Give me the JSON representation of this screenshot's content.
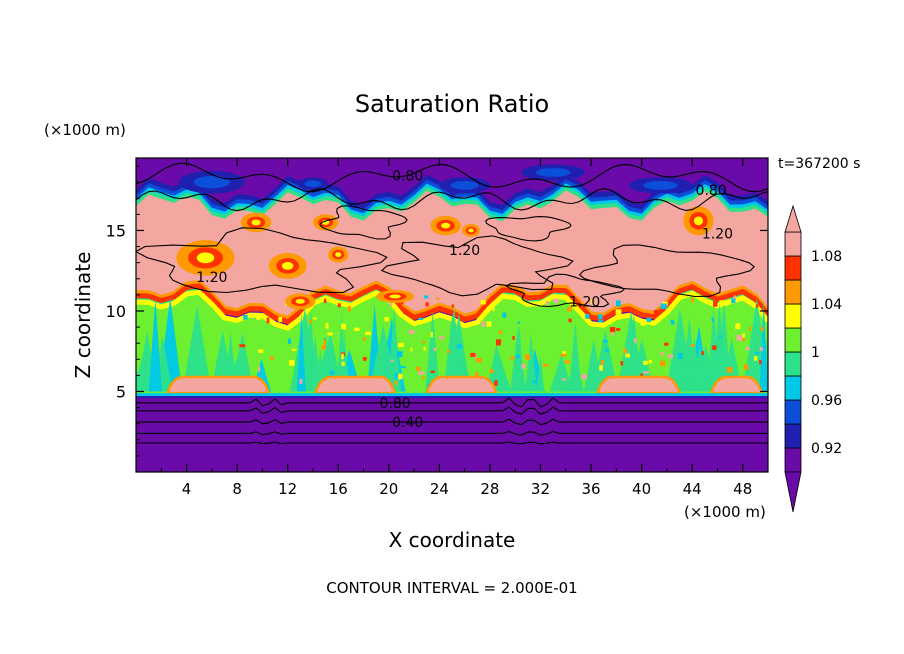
{
  "chart_data": {
    "type": "heatmap",
    "title": "Saturation Ratio",
    "xlabel": "X coordinate",
    "ylabel": "Z coordinate",
    "x_unit": "(×1000 m)",
    "y_unit": "(×1000 m)",
    "time_label": "t=367200 s",
    "footer": "CONTOUR INTERVAL = 2.000E-01",
    "xlim": [
      0,
      50
    ],
    "ylim": [
      0,
      19.5
    ],
    "x_ticks": [
      4,
      8,
      12,
      16,
      20,
      24,
      28,
      32,
      36,
      40,
      44,
      48
    ],
    "y_ticks": [
      5,
      10,
      15
    ],
    "grid": false,
    "colorbar": {
      "placement": "right",
      "tick_labels": [
        "0.92",
        "0.96",
        "1",
        "1.04",
        "1.08"
      ],
      "tick_values": [
        0.92,
        0.96,
        1.0,
        1.04,
        1.08
      ],
      "colors": [
        "#6a0aa8",
        "#1f1fb0",
        "#0b4fd8",
        "#00c8e8",
        "#2de08a",
        "#6df030",
        "#ffff00",
        "#ff9900",
        "#ff3300",
        "#f4a6a0"
      ]
    },
    "contour_labels": [
      {
        "text": "0.80",
        "x": 21.5,
        "z": 18.4
      },
      {
        "text": "0.80",
        "x": 45.5,
        "z": 17.5
      },
      {
        "text": "1.20",
        "x": 26.0,
        "z": 13.8
      },
      {
        "text": "1.20",
        "x": 6.0,
        "z": 12.1
      },
      {
        "text": "1.20",
        "x": 35.5,
        "z": 10.6
      },
      {
        "text": "1.20",
        "x": 46.0,
        "z": 14.8
      },
      {
        "text": "0.80",
        "x": 20.5,
        "z": 4.3
      },
      {
        "text": "0.40",
        "x": 21.5,
        "z": 3.1
      }
    ],
    "regions": [
      {
        "level": "<0.92",
        "color": "#6a0aa8",
        "zmin": 0,
        "zmax": 4.6
      },
      {
        "level": "<0.92",
        "color": "#6a0aa8",
        "zmin": 16.8,
        "zmax": 19.5
      },
      {
        "level": ">1.08",
        "color": "#f4a6a0",
        "zmin": 10.5,
        "zmax": 16.3
      },
      {
        "level": "~1",
        "color": "#6df030",
        "zmin": 4.9,
        "zmax": 10.0
      }
    ]
  }
}
